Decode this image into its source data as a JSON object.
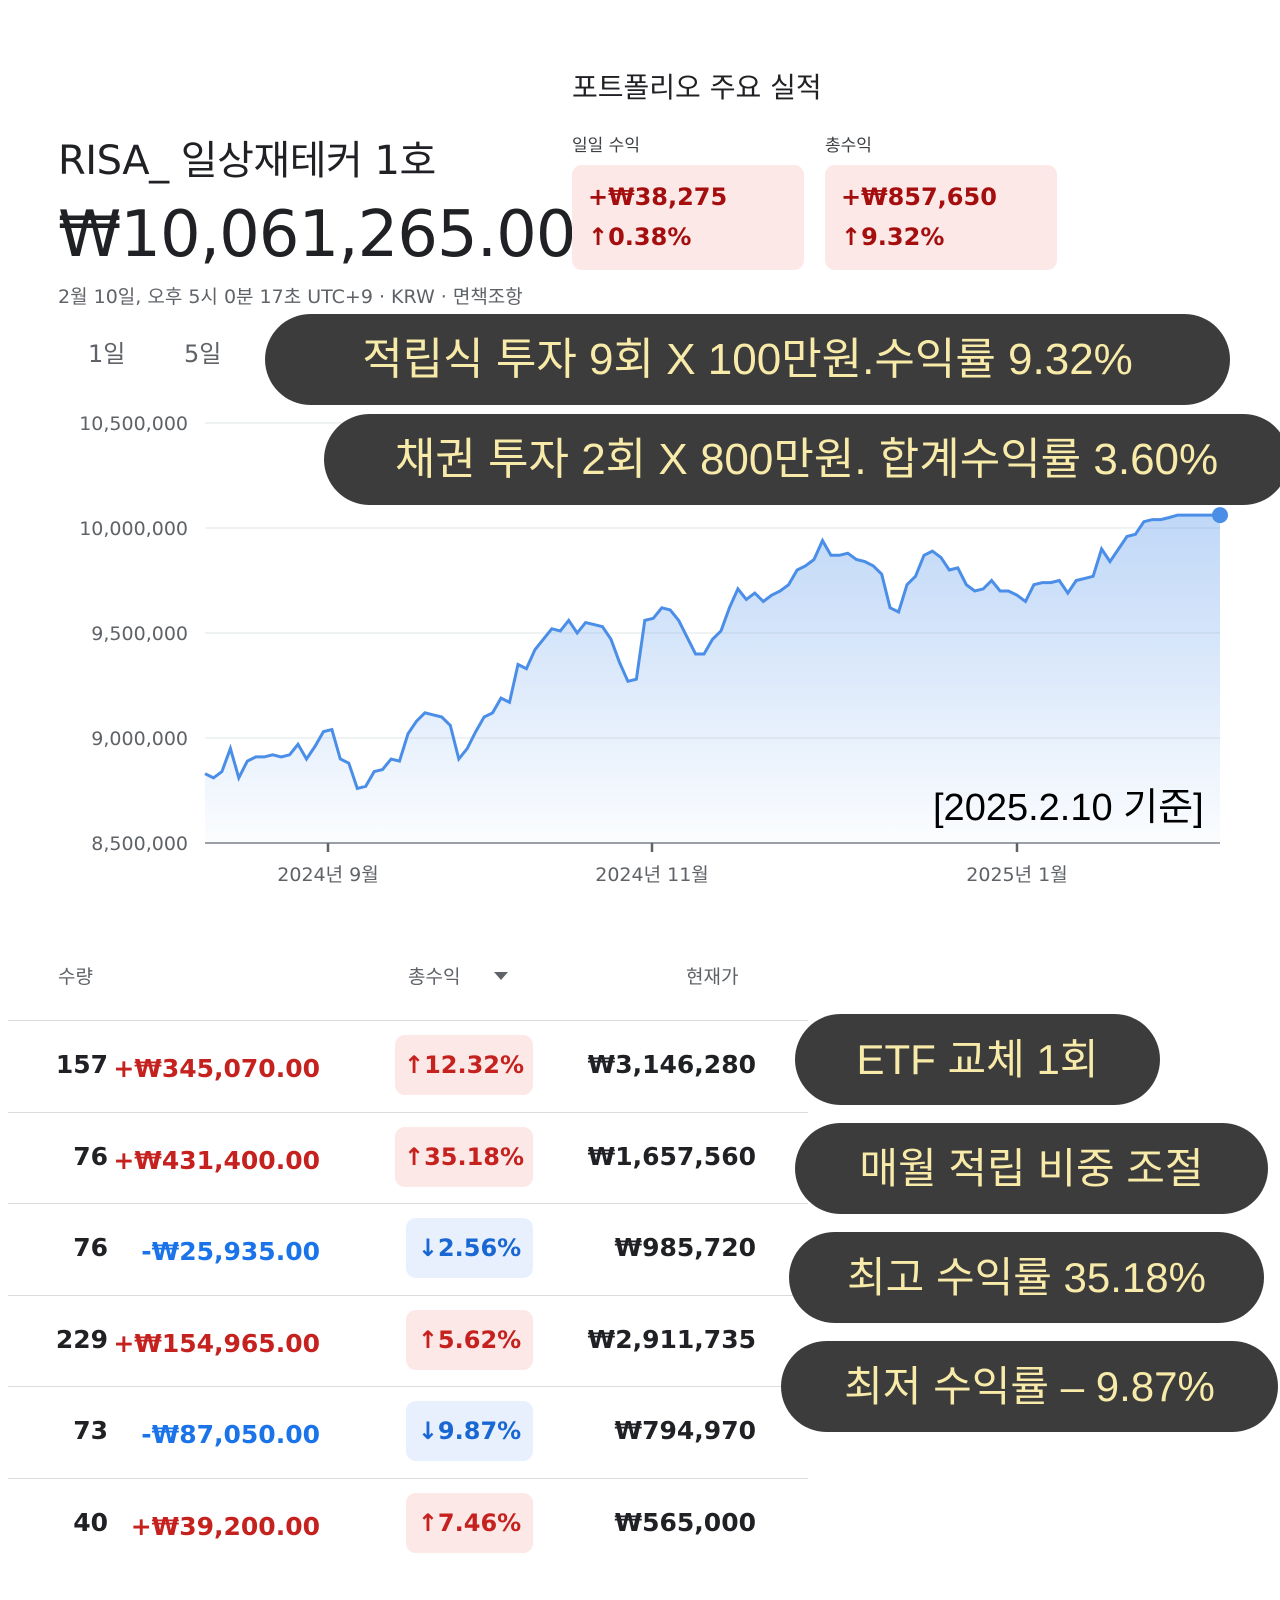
{
  "header": {
    "portfolio_name": "RISA_ 일상재테커 1호",
    "total_value": "₩10,061,265.00",
    "timestamp": "2월 10일, 오후 5시 0분 17초 UTC+9 · KRW · 면책조항"
  },
  "performance": {
    "title": "포트폴리오 주요 실적",
    "daily": {
      "label": "일일 수익",
      "amount": "+₩38,275",
      "percent": "↑0.38%"
    },
    "total": {
      "label": "총수익",
      "amount": "+₩857,650",
      "percent": "↑9.32%"
    }
  },
  "range_tabs": [
    "1일",
    "5일"
  ],
  "callouts": {
    "c1": "적립식 투자 9회 X 100만원.수익률 9.32%",
    "c2": "채권 투자 2회 X 800만원. 합계수익률 3.60%",
    "c3": "ETF 교체 1회",
    "c4": "매월 적립 비중 조절",
    "c5": "최고 수익률 35.18%",
    "c6": "최저 수익률 – 9.87%"
  },
  "as_of": "[2025.2.10 기준]",
  "colors": {
    "line": "#4a8ee8",
    "positive": "#c5221f",
    "negative": "#1a73e8",
    "callout_bg": "#3c3c3c",
    "callout_text": "#f8eaa8"
  },
  "chart_data": {
    "type": "area",
    "y_ticks": [
      "10,500,000",
      "10,000,000",
      "9,500,000",
      "9,000,000",
      "8,500,000"
    ],
    "x_ticks": [
      "2024년 9월",
      "2024년 11월",
      "2025년 1월"
    ],
    "ylim": [
      8500000,
      10500000
    ],
    "grid": true,
    "x": [
      0,
      1,
      2,
      3,
      4,
      5,
      6,
      7,
      8,
      9,
      10,
      11,
      12,
      13,
      14,
      15,
      16,
      17,
      18,
      19,
      20,
      21,
      22,
      23,
      24,
      25,
      26,
      27,
      28,
      29,
      30,
      31,
      32,
      33,
      34,
      35,
      36,
      37,
      38,
      39,
      40,
      41,
      42,
      43,
      44,
      45,
      46,
      47,
      48,
      49,
      50,
      51,
      52,
      53,
      54,
      55,
      56,
      57,
      58,
      59,
      60,
      61,
      62,
      63,
      64,
      65,
      66,
      67,
      68,
      69,
      70,
      71,
      72,
      73,
      74,
      75,
      76,
      77,
      78,
      79,
      80,
      81,
      82,
      83,
      84,
      85,
      86,
      87,
      88,
      89,
      90,
      91,
      92,
      93,
      94,
      95,
      96,
      97,
      98,
      99,
      100,
      101,
      102,
      103,
      104,
      105,
      106,
      107,
      108,
      109,
      110,
      111,
      112,
      113,
      114,
      115,
      116,
      117,
      118,
      119,
      120
    ],
    "values": [
      8830000,
      8810000,
      8840000,
      8950000,
      8810000,
      8890000,
      8910000,
      8910000,
      8920000,
      8910000,
      8920000,
      8970000,
      8900000,
      8960000,
      9030000,
      9040000,
      8900000,
      8880000,
      8760000,
      8770000,
      8840000,
      8850000,
      8900000,
      8890000,
      9020000,
      9080000,
      9120000,
      9110000,
      9100000,
      9060000,
      8900000,
      8950000,
      9030000,
      9100000,
      9120000,
      9190000,
      9170000,
      9350000,
      9330000,
      9420000,
      9470000,
      9520000,
      9510000,
      9560000,
      9500000,
      9550000,
      9540000,
      9530000,
      9470000,
      9360000,
      9270000,
      9280000,
      9560000,
      9570000,
      9620000,
      9610000,
      9560000,
      9480000,
      9400000,
      9400000,
      9470000,
      9510000,
      9620000,
      9710000,
      9660000,
      9690000,
      9650000,
      9680000,
      9700000,
      9730000,
      9800000,
      9820000,
      9850000,
      9940000,
      9870000,
      9870000,
      9880000,
      9850000,
      9840000,
      9820000,
      9780000,
      9620000,
      9600000,
      9730000,
      9770000,
      9870000,
      9890000,
      9860000,
      9800000,
      9810000,
      9730000,
      9700000,
      9710000,
      9750000,
      9700000,
      9700000,
      9680000,
      9650000,
      9730000,
      9740000,
      9740000,
      9750000,
      9690000,
      9750000,
      9760000,
      9770000,
      9900000,
      9840000,
      9900000,
      9960000,
      9970000,
      10030000,
      10040000,
      10040000,
      10050000,
      10061265,
      10061265,
      10061265,
      10061265,
      10061265,
      10061265
    ],
    "current_value": 10061265
  },
  "table": {
    "headers": {
      "qty": "수량",
      "total_gain": "총수익",
      "price": "현재가"
    },
    "rows": [
      {
        "qty": "157",
        "gain": "+₩345,070.00",
        "pct": "↑12.32%",
        "price": "₩3,146,280",
        "dir": "up"
      },
      {
        "qty": "76",
        "gain": "+₩431,400.00",
        "pct": "↑35.18%",
        "price": "₩1,657,560",
        "dir": "up"
      },
      {
        "qty": "76",
        "gain": "-₩25,935.00",
        "pct": "↓2.56%",
        "price": "₩985,720",
        "dir": "down"
      },
      {
        "qty": "229",
        "gain": "+₩154,965.00",
        "pct": "↑5.62%",
        "price": "₩2,911,735",
        "dir": "up"
      },
      {
        "qty": "73",
        "gain": "-₩87,050.00",
        "pct": "↓9.87%",
        "price": "₩794,970",
        "dir": "down"
      },
      {
        "qty": "40",
        "gain": "+₩39,200.00",
        "pct": "↑7.46%",
        "price": "₩565,000",
        "dir": "up"
      }
    ]
  }
}
